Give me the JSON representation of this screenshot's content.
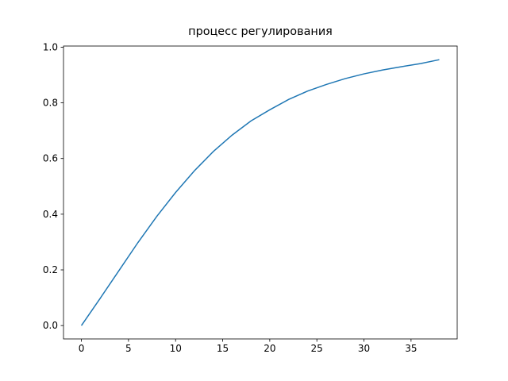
{
  "chart_data": {
    "type": "line",
    "title": "процесс регулирования",
    "x": [
      0,
      2,
      4,
      6,
      8,
      10,
      12,
      14,
      16,
      18,
      20,
      22,
      24,
      26,
      28,
      30,
      32,
      34,
      36,
      38
    ],
    "series": [
      {
        "color": "#1f77b4",
        "values": [
          0,
          0.098,
          0.198,
          0.298,
          0.392,
          0.478,
          0.556,
          0.625,
          0.684,
          0.735,
          0.775,
          0.812,
          0.842,
          0.866,
          0.887,
          0.904,
          0.918,
          0.93,
          0.941,
          0.955
        ]
      }
    ],
    "xlim": [
      -1.9,
      39.9
    ],
    "ylim": [
      -0.048,
      1.004
    ],
    "xticks": [
      0,
      5,
      10,
      15,
      20,
      25,
      30,
      35
    ],
    "yticks": [
      {
        "value": 0,
        "label": "0.0"
      },
      {
        "value": 0.2,
        "label": "0.2"
      },
      {
        "value": 0.4,
        "label": "0.4"
      },
      {
        "value": 0.6,
        "label": "0.6"
      },
      {
        "value": 0.8,
        "label": "0.8"
      },
      {
        "value": 1,
        "label": "1.0"
      }
    ],
    "grid": false
  }
}
